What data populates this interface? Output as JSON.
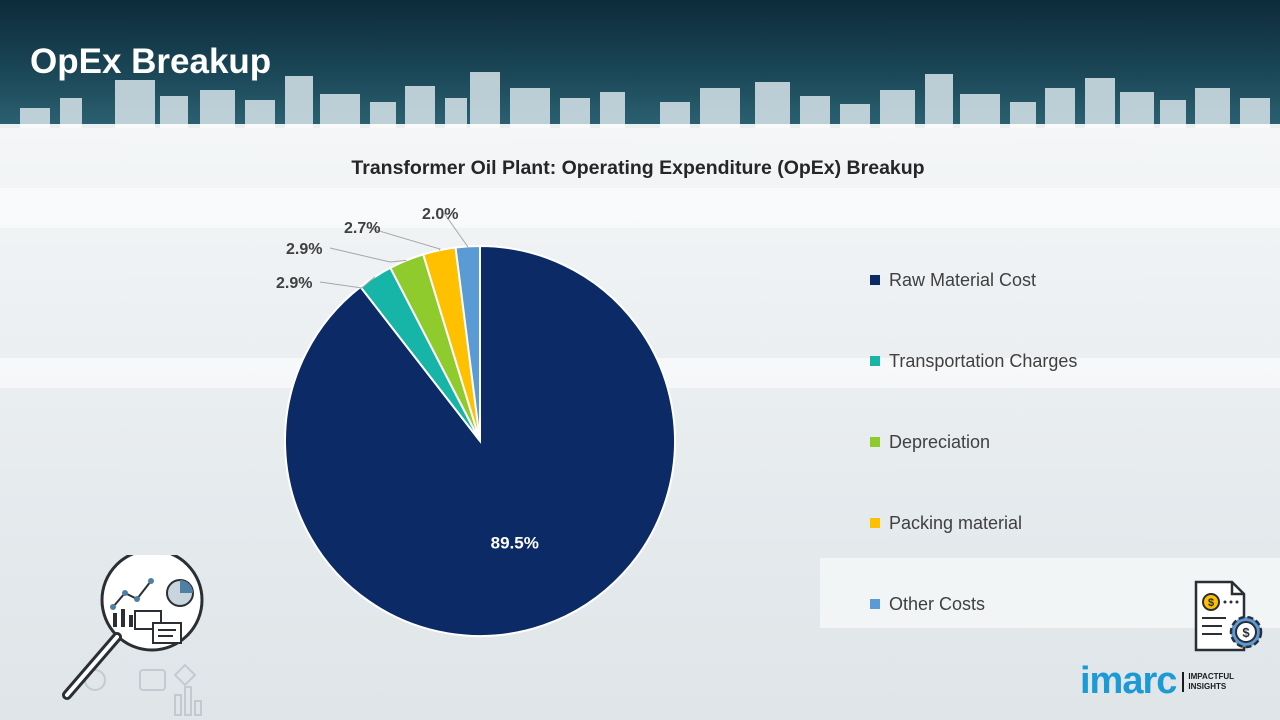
{
  "header": {
    "title": "OpEx Breakup"
  },
  "colors": {
    "raw_material": "#0b2a66",
    "transportation": "#16b5a8",
    "depreciation": "#8fcb2d",
    "packing": "#ffc000",
    "other": "#5b9bd5"
  },
  "chart_data": {
    "type": "pie",
    "title": "Transformer Oil Plant: Operating Expenditure (OpEx) Breakup",
    "categories": [
      "Raw Material Cost",
      "Transportation Charges",
      "Depreciation",
      "Packing material",
      "Other Costs"
    ],
    "values": [
      89.5,
      2.9,
      2.9,
      2.7,
      2.0
    ],
    "value_labels": [
      "89.5%",
      "2.9%",
      "2.9%",
      "2.7%",
      "2.0%"
    ],
    "colors": [
      "#0b2a66",
      "#16b5a8",
      "#8fcb2d",
      "#ffc000",
      "#5b9bd5"
    ],
    "legend_position": "right",
    "start_angle": "12 o'clock, clockwise"
  },
  "icons": {
    "left": "magnifier-analytics-icon",
    "right": "invoice-dollar-gear-icon"
  },
  "logo": {
    "word": "imarc",
    "tagline_1": "IMPACTFUL",
    "tagline_2": "INSIGHTS"
  }
}
